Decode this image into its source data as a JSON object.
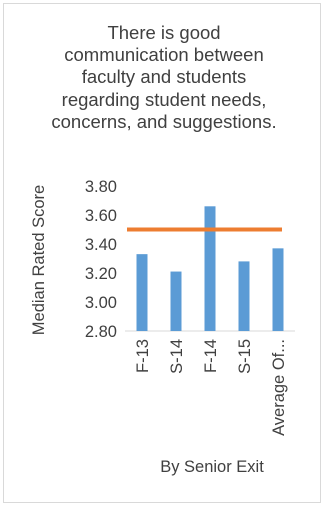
{
  "chart_data": {
    "type": "bar",
    "title": "There is good\ncommunication between\nfaculty and students\nregarding student needs,\nconcerns, and suggestions.",
    "xlabel": "By Senior Exit",
    "ylabel": "Median Rated Score",
    "categories": [
      "F-13",
      "S-14",
      "F-14",
      "S-15",
      "Average Of..."
    ],
    "values": [
      3.33,
      3.21,
      3.66,
      3.28,
      3.37
    ],
    "target": 3.5,
    "ylim": [
      2.8,
      3.8
    ],
    "yticks": [
      "3.80",
      "3.60",
      "3.40",
      "3.20",
      "3.00",
      "2.80"
    ],
    "bar_color": "#5b9bd5",
    "line_color": "#ed7d31",
    "grid": false,
    "legend": "none"
  }
}
